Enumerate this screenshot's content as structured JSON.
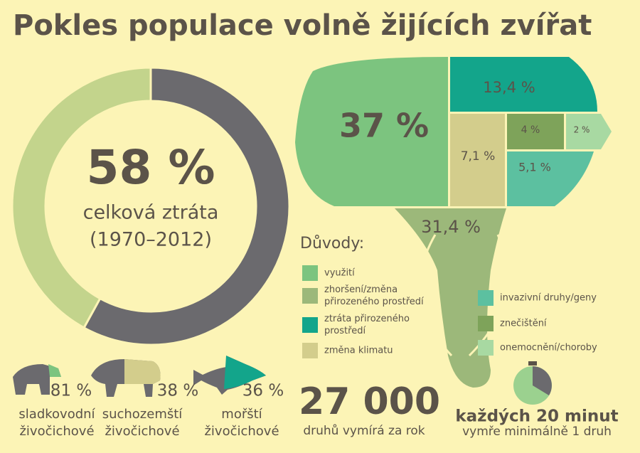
{
  "title": "Pokles populace volně žijících zvířat",
  "total": {
    "value": 58,
    "label": "58 %",
    "caption_lines": [
      "celková ztráta",
      "(1970–2012)"
    ],
    "color": "#6b6a6e",
    "rest_color": "#c3d48c"
  },
  "groups": [
    {
      "value": 81,
      "label": "81 %",
      "name_lines": [
        "sladkovodní",
        "živočichové"
      ]
    },
    {
      "value": 38,
      "label": "38 %",
      "name_lines": [
        "suchozemští",
        "živočichové"
      ]
    },
    {
      "value": 36,
      "label": "36 %",
      "name_lines": [
        "mořští",
        "živočichové"
      ]
    }
  ],
  "reasons_title": "Důvody:",
  "reasons": [
    {
      "name_lines": [
        "využití"
      ],
      "value": 37,
      "label": "37 %",
      "color": "#7cc47f"
    },
    {
      "name_lines": [
        "zhoršení/změna",
        "přirozeného prostředí"
      ],
      "value": 31.4,
      "label": "31,4 %",
      "color": "#9cb87a"
    },
    {
      "name_lines": [
        "ztráta přirozeného",
        "prostředí"
      ],
      "value": 13.4,
      "label": "13,4 %",
      "color": "#13a58b"
    },
    {
      "name_lines": [
        "změna klimatu"
      ],
      "value": 7.1,
      "label": "7,1 %",
      "color": "#d3cd8c"
    },
    {
      "name_lines": [
        "invazivní druhy/geny"
      ],
      "value": 5.1,
      "label": "5,1 %",
      "color": "#5cc0a0"
    },
    {
      "name_lines": [
        "znečištění"
      ],
      "value": 4,
      "label": "4 %",
      "color": "#7ea35a"
    },
    {
      "name_lines": [
        "onemocnění/choroby"
      ],
      "value": 2,
      "label": "2 %",
      "color": "#a8d9a2"
    }
  ],
  "species_count": "27 000",
  "species_caption": "druhů vymírá za rok",
  "clock_title": "každých 20 minut",
  "clock_caption": "vymře minimálně 1 druh"
}
